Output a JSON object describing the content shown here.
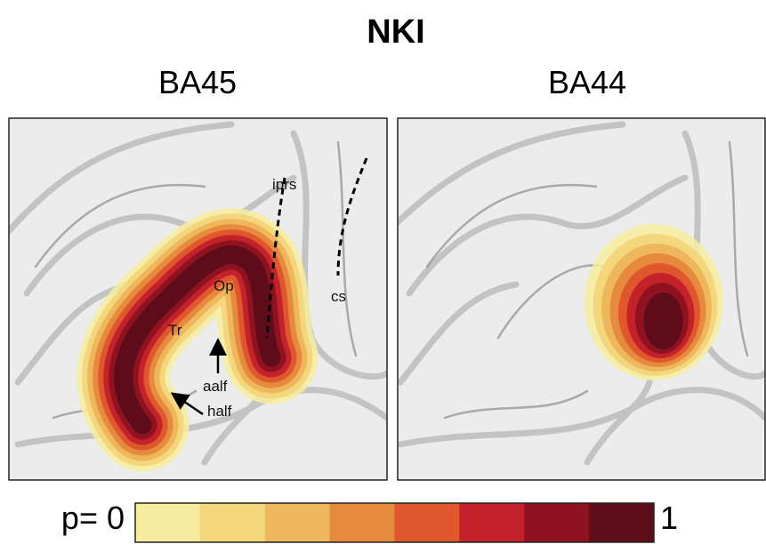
{
  "title": "NKI",
  "panels": [
    {
      "label": "BA45",
      "annotations": {
        "iprs": "iprs",
        "cs": "cs",
        "op": "Op",
        "tr": "Tr",
        "aalf": "aalf",
        "half": "half"
      }
    },
    {
      "label": "BA44"
    }
  ],
  "colorbar": {
    "min_label": "p= 0",
    "max_label": "1",
    "colors": [
      "#f7ed9f",
      "#f4d77c",
      "#efb75b",
      "#e68a3e",
      "#e0572e",
      "#c3222a",
      "#8f1221",
      "#5e0c1a"
    ]
  }
}
